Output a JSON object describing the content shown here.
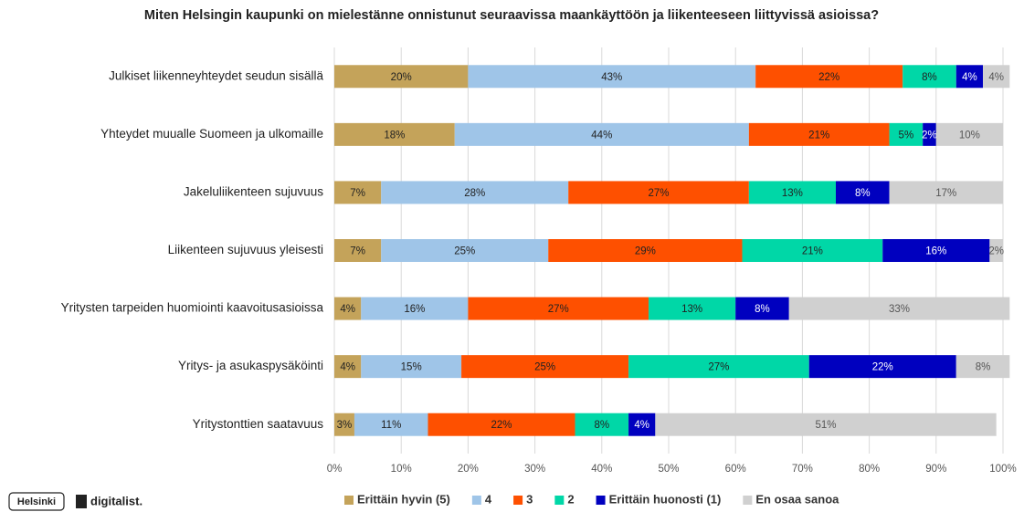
{
  "chart_data": {
    "type": "stacked-bar-horizontal",
    "title": "Miten Helsingin kaupunki on mielestänne onnistunut seuraavissa maankäyttöön ja liikenteeseen liittyvissä asioissa?",
    "categories": [
      "Julkiset liikenneyhteydet seudun sisällä",
      "Yhteydet muualle Suomeen ja ulkomaille",
      "Jakeluliikenteen sujuvuus",
      "Liikenteen sujuvuus yleisesti",
      "Yritysten tarpeiden huomiointi kaavoitusasioissa",
      "Yritys- ja asukaspysäköinti",
      "Yritystonttien saatavuus"
    ],
    "series": [
      {
        "name": "Erittäin hyvin (5)",
        "color": "#c4a35a",
        "values": [
          20,
          18,
          7,
          7,
          4,
          4,
          3
        ],
        "value_labels": [
          "20%",
          "18%",
          "7%",
          "7%",
          "4%",
          "4%",
          "3%"
        ]
      },
      {
        "name": "4",
        "color": "#9fc5e8",
        "values": [
          43,
          44,
          28,
          25,
          16,
          15,
          11
        ],
        "value_labels": [
          "43%",
          "44%",
          "28%",
          "25%",
          "16%",
          "15%",
          "11%"
        ]
      },
      {
        "name": "3",
        "color": "#fe5000",
        "values": [
          22,
          21,
          27,
          29,
          27,
          25,
          22
        ],
        "value_labels": [
          "22%",
          "21%",
          "27%",
          "29%",
          "27%",
          "25%",
          "22%"
        ]
      },
      {
        "name": "2",
        "color": "#00d7a7",
        "values": [
          8,
          5,
          13,
          21,
          13,
          27,
          8
        ],
        "value_labels": [
          "8%",
          "5%",
          "13%",
          "21%",
          "13%",
          "27%",
          "8%"
        ]
      },
      {
        "name": "Erittäin huonosti (1)",
        "color": "#0000bf",
        "values": [
          4,
          2,
          8,
          16,
          8,
          22,
          4
        ],
        "value_labels": [
          "4%",
          "2%",
          "8%",
          "16%",
          "8%",
          "22%",
          "4%"
        ]
      },
      {
        "name": "En osaa sanoa",
        "color": "#d0d0d0",
        "values": [
          4,
          10,
          17,
          2,
          33,
          8,
          51
        ],
        "value_labels": [
          "4%",
          "10%",
          "17%",
          "2%",
          "33%",
          "8%",
          "51%"
        ]
      }
    ],
    "xlim": [
      0,
      100
    ],
    "xticks": [
      {
        "value": 0,
        "label": "0%"
      },
      {
        "value": 10,
        "label": "10%"
      },
      {
        "value": 20,
        "label": "20%"
      },
      {
        "value": 30,
        "label": "30%"
      },
      {
        "value": 40,
        "label": "40%"
      },
      {
        "value": 50,
        "label": "50%"
      },
      {
        "value": 60,
        "label": "60%"
      },
      {
        "value": 70,
        "label": "70%"
      },
      {
        "value": 80,
        "label": "80%"
      },
      {
        "value": 90,
        "label": "90%"
      },
      {
        "value": 100,
        "label": "100%"
      }
    ],
    "grid": true,
    "legend": "bottom"
  },
  "logos": [
    "Helsinki",
    "digitalist."
  ]
}
